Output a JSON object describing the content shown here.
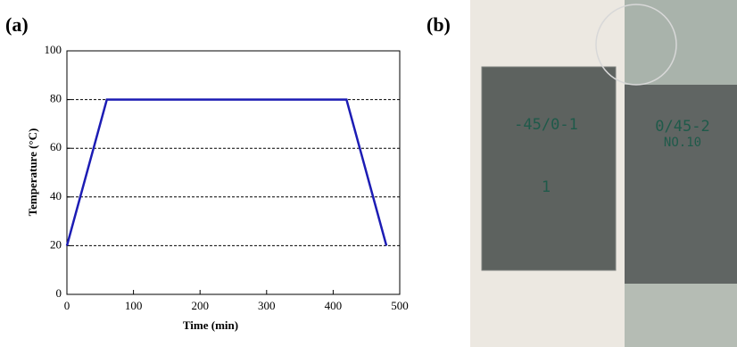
{
  "panel_labels": [
    "(a)",
    "(b)"
  ],
  "chart_data": {
    "type": "line",
    "x_label": "Time (min)",
    "y_label": "Temperature (°C)",
    "x": [
      0,
      60,
      420,
      480
    ],
    "series": [
      {
        "name": "Temperature",
        "color": "#1c1cb4",
        "values": [
          20,
          80,
          80,
          20
        ]
      }
    ],
    "xlim": [
      0,
      500
    ],
    "xticks": [
      0,
      100,
      200,
      300,
      400,
      500
    ],
    "ylim": [
      0,
      100
    ],
    "yticks": [
      0,
      20,
      40,
      60,
      80,
      100
    ],
    "grid": "dashed"
  },
  "photo_text": {
    "left_specimen": [
      "-45/0-1",
      "1"
    ],
    "right_specimen": [
      "0/45-2",
      "NO.10"
    ]
  }
}
